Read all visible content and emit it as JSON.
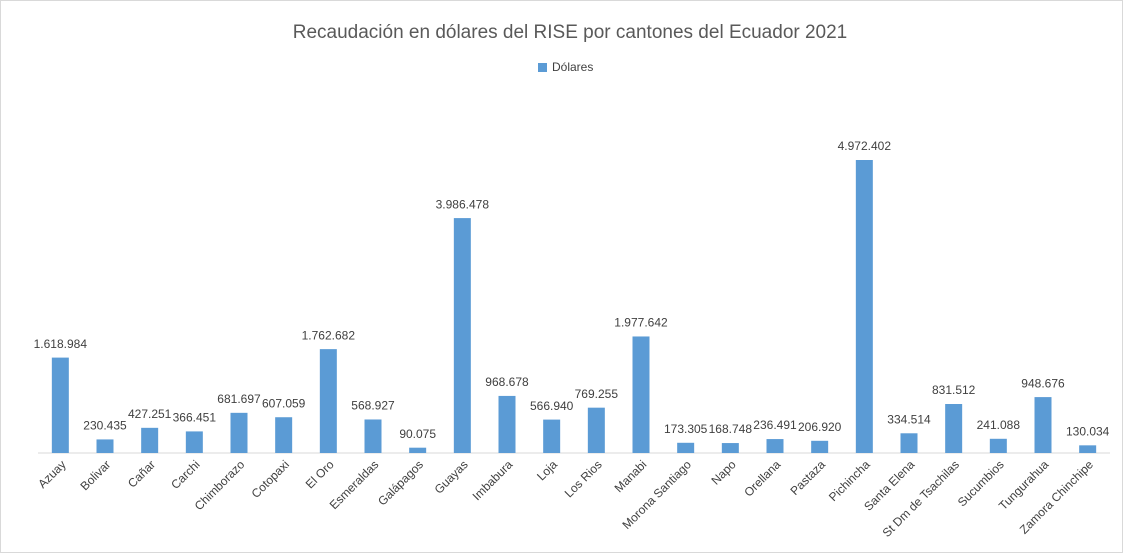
{
  "chart_data": {
    "type": "bar",
    "title": "Recaudación en dólares del RISE por cantones del Ecuador 2021",
    "categories": [
      "Azuay",
      "Bolivar",
      "Cañar",
      "Carchi",
      "Chimborazo",
      "Cotopaxi",
      "El Oro",
      "Esmeraldas",
      "Galápagos",
      "Guayas",
      "Imbabura",
      "Loja",
      "Los Rios",
      "Manabi",
      "Morona Santiago",
      "Napo",
      "Orellana",
      "Pastaza",
      "Pichincha",
      "Santa Elena",
      "St Dm de Tsachilas",
      "Sucumbios",
      "Tungurahua",
      "Zamora Chinchipe"
    ],
    "series": [
      {
        "name": "Dólares",
        "color": "#5b9bd5",
        "values": [
          1618984,
          230435,
          427251,
          366451,
          681697,
          607059,
          1762682,
          568927,
          90075,
          3986478,
          968678,
          566940,
          769255,
          1977642,
          173305,
          168748,
          236491,
          206920,
          4972402,
          334514,
          831512,
          241088,
          948676,
          130034
        ],
        "value_labels": [
          "1.618.984",
          "230.435",
          "427.251",
          "366.451",
          "681.697",
          "607.059",
          "1.762.682",
          "568.927",
          "90.075",
          "3.986.478",
          "968.678",
          "566.940",
          "769.255",
          "1.977.642",
          "173.305",
          "168.748",
          "236.491",
          "206.920",
          "4.972.402",
          "334.514",
          "831.512",
          "241.088",
          "948.676",
          "130.034"
        ]
      }
    ],
    "legend": "top"
  }
}
